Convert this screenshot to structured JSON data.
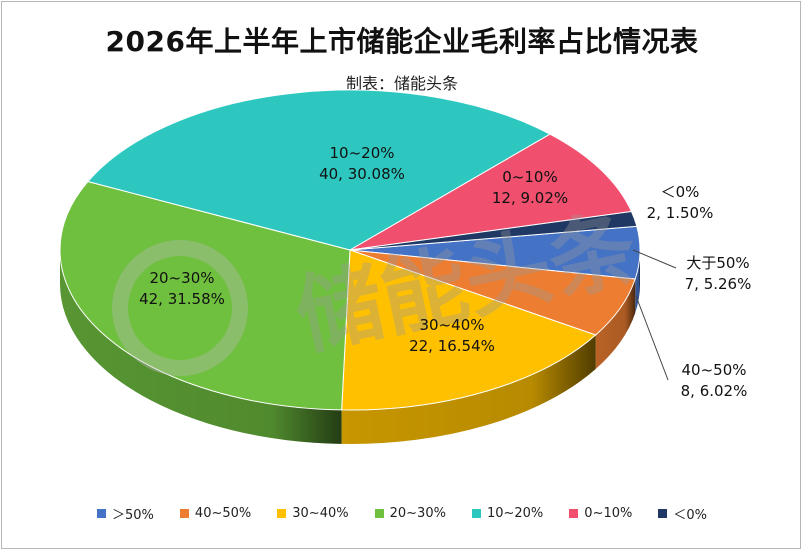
{
  "chart_data": {
    "type": "pie",
    "title": "2026年上半年上市储能企业毛利率占比情况表",
    "subtitle": "制表：储能头条",
    "watermark": "储能头条",
    "slices": [
      {
        "key": "gt50",
        "label": "大于50%",
        "legend": "＞50%",
        "count": 7,
        "percent": "5.26%",
        "color": "#4472C4",
        "label_text": "大于50%",
        "value_text": "7, 5.26%"
      },
      {
        "key": "40_50",
        "label": "40~50%",
        "legend": "40~50%",
        "count": 8,
        "percent": "6.02%",
        "color": "#ED7D31",
        "label_text": "40~50%",
        "value_text": "8, 6.02%"
      },
      {
        "key": "30_40",
        "label": "30~40%",
        "legend": "30~40%",
        "count": 22,
        "percent": "16.54%",
        "color": "#FFC000",
        "label_text": "30~40%",
        "value_text": "22, 16.54%"
      },
      {
        "key": "20_30",
        "label": "20~30%",
        "legend": "20~30%",
        "count": 42,
        "percent": "31.58%",
        "color": "#70C040",
        "label_text": "20~30%",
        "value_text": "42, 31.58%"
      },
      {
        "key": "10_20",
        "label": "10~20%",
        "legend": "10~20%",
        "count": 40,
        "percent": "30.08%",
        "color": "#2EC7C0",
        "label_text": "10~20%",
        "value_text": "40, 30.08%"
      },
      {
        "key": "0_10",
        "label": "0~10%",
        "legend": "0~10%",
        "count": 12,
        "percent": "9.02%",
        "color": "#F0506E",
        "label_text": "0~10%",
        "value_text": "12, 9.02%"
      },
      {
        "key": "lt0",
        "label": "＜0%",
        "legend": "＜0%",
        "count": 2,
        "percent": "1.50%",
        "color": "#203864",
        "label_text": "＜0%",
        "value_text": "2, 1.50%"
      }
    ]
  }
}
